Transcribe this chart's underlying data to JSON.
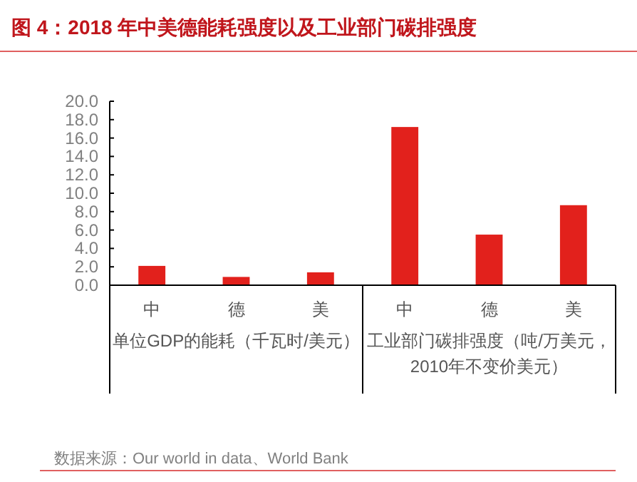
{
  "chart_data": {
    "type": "bar",
    "title": "图 4：2018 年中美德能耗强度以及工业部门碳排强度",
    "categories": [
      "中",
      "德",
      "美",
      "中",
      "德",
      "美"
    ],
    "values": [
      2.1,
      0.9,
      1.4,
      17.2,
      5.5,
      8.7
    ],
    "color": "#e2211c",
    "ylim": [
      0,
      20
    ],
    "yticks": [
      {
        "value": 0,
        "label": "0.0"
      },
      {
        "value": 2,
        "label": "2.0"
      },
      {
        "value": 4,
        "label": "4.0"
      },
      {
        "value": 6,
        "label": "6.0"
      },
      {
        "value": 8,
        "label": "8.0"
      },
      {
        "value": 10,
        "label": "10.0"
      },
      {
        "value": 12,
        "label": "12.0"
      },
      {
        "value": 14,
        "label": "14.0"
      },
      {
        "value": 16,
        "label": "16.0"
      },
      {
        "value": 18,
        "label": "18.0"
      },
      {
        "value": 20,
        "label": "20.0"
      }
    ],
    "annotations": [
      "单位GDP的能耗（千瓦时/美元）",
      "工业部门碳排强度（吨/万美元，2010年不变价美元）",
      "数据来源：Our world in data、World Bank"
    ],
    "grid": false
  }
}
